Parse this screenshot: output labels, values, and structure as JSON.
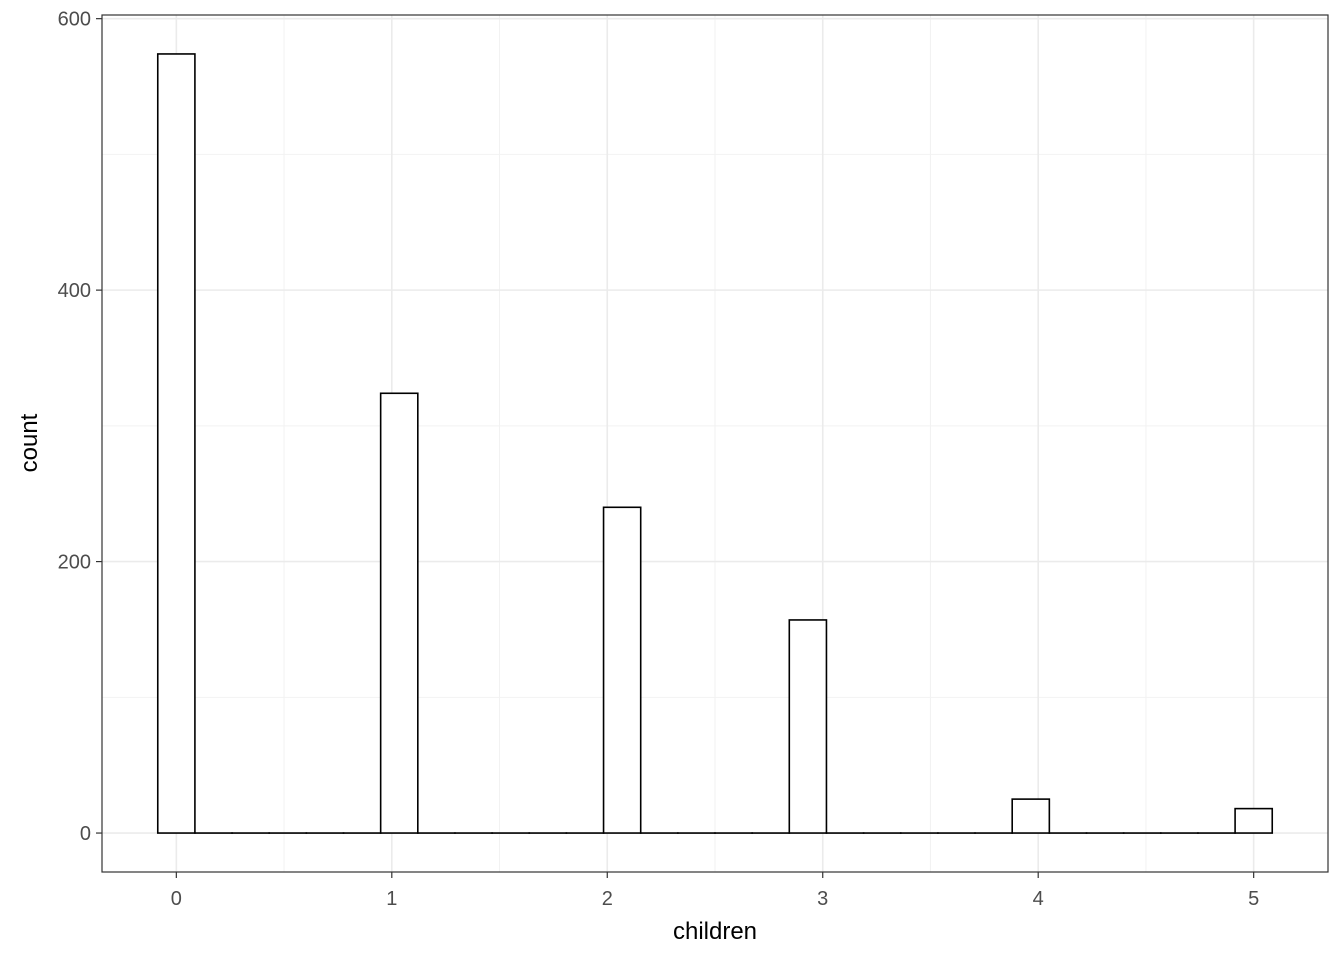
{
  "chart_data": {
    "type": "bar",
    "subtype": "histogram",
    "xlabel": "children",
    "ylabel": "count",
    "bins": 30,
    "x_range_of_bin_centers": [
      0,
      5
    ],
    "counts": [
      574,
      0,
      0,
      0,
      0,
      0,
      324,
      0,
      0,
      0,
      0,
      0,
      240,
      0,
      0,
      0,
      0,
      157,
      0,
      0,
      0,
      0,
      0,
      25,
      0,
      0,
      0,
      0,
      0,
      18
    ],
    "xlim": [
      -0.345,
      5.345
    ],
    "ylim": [
      -28.7,
      602.7
    ],
    "x_ticks": [
      "0",
      "1",
      "2",
      "3",
      "4",
      "5"
    ],
    "y_ticks": [
      "0",
      "200",
      "400",
      "600"
    ],
    "grid": true,
    "colors": {
      "bar_fill": "#ffffff",
      "bar_outline": "#000000",
      "grid": "#ebebeb",
      "panel_border": "#333333"
    }
  }
}
